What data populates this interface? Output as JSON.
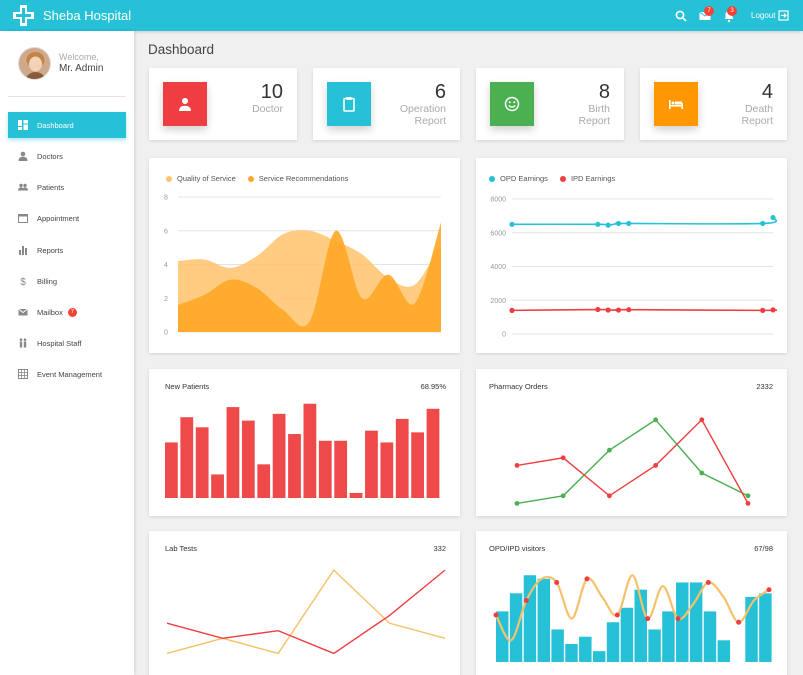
{
  "header": {
    "brand": "Sheba Hospital",
    "mail_badge": "7",
    "notif_badge": "3",
    "logout_label": "Logout",
    "accent": "#26c1d6"
  },
  "user": {
    "welcome": "Welcome,",
    "name": "Mr. Admin"
  },
  "sidebar": {
    "items": [
      {
        "label": "Dashboard",
        "icon": "dashboard-icon",
        "active": true
      },
      {
        "label": "Doctors",
        "icon": "person-icon"
      },
      {
        "label": "Patients",
        "icon": "people-icon"
      },
      {
        "label": "Appointment",
        "icon": "calendar-icon"
      },
      {
        "label": "Reports",
        "icon": "bar-chart-icon"
      },
      {
        "label": "Billing",
        "icon": "dollar-icon"
      },
      {
        "label": "Mailbox",
        "icon": "mail-icon",
        "badge": "7"
      },
      {
        "label": "Hospital Staff",
        "icon": "staff-icon"
      },
      {
        "label": "Event Management",
        "icon": "grid-icon"
      }
    ]
  },
  "page_title": "Dashboard",
  "stats": [
    {
      "value": "10",
      "label_lines": [
        "Doctor"
      ],
      "color": "#ef3e42",
      "icon": "person-icon"
    },
    {
      "value": "6",
      "label_lines": [
        "Operation",
        "Report"
      ],
      "color": "#26c1d6",
      "icon": "clipboard-icon"
    },
    {
      "value": "8",
      "label_lines": [
        "Birth",
        "Report"
      ],
      "color": "#4caf50",
      "icon": "smiley-icon"
    },
    {
      "value": "4",
      "label_lines": [
        "Death",
        "Report"
      ],
      "color": "#ff9800",
      "icon": "bed-icon"
    }
  ],
  "chart_data": [
    {
      "type": "area",
      "title": "",
      "series": [
        {
          "name": "Quality of Service",
          "color": "#ffc36b",
          "x": [
            0,
            1,
            2,
            3,
            4,
            5,
            6,
            7,
            8,
            9,
            10
          ],
          "values": [
            4.2,
            4.3,
            3.8,
            4.5,
            5.8,
            6.0,
            5.4,
            4.6,
            3.2,
            2.8,
            5.3
          ]
        },
        {
          "name": "Service Recommendations",
          "color": "#ffa726",
          "x": [
            0,
            1,
            2,
            3,
            4,
            5,
            6,
            7,
            8,
            9,
            10
          ],
          "values": [
            1.6,
            2.2,
            3.1,
            2.6,
            1.3,
            0.6,
            6.0,
            2.0,
            3.4,
            1.7,
            6.5
          ]
        }
      ],
      "ylim": [
        0,
        8
      ],
      "yticks": [
        0,
        2,
        4,
        6,
        8
      ]
    },
    {
      "type": "line",
      "title": "",
      "series": [
        {
          "name": "OPD Earnings",
          "color": "#26c1d6",
          "x": [
            0,
            2.5,
            2.8,
            3.1,
            3.4,
            7.3,
            7.6
          ],
          "values": [
            6500,
            6500,
            6450,
            6550,
            6550,
            6550,
            6900
          ]
        },
        {
          "name": "IPD Earnings",
          "color": "#ef3e42",
          "x": [
            0,
            2.5,
            2.8,
            3.1,
            3.4,
            7.3,
            7.6
          ],
          "values": [
            1400,
            1450,
            1420,
            1420,
            1440,
            1400,
            1430
          ]
        }
      ],
      "ylim": [
        0,
        8000
      ],
      "yticks": [
        0,
        2000,
        4000,
        6000,
        8000
      ]
    },
    {
      "type": "bar",
      "title": "New Patients",
      "summary": "68.95%",
      "color": "#ef4a4a",
      "values": [
        33,
        48,
        42,
        14,
        54,
        46,
        20,
        50,
        38,
        56,
        34,
        34,
        3,
        40,
        33,
        47,
        39,
        53
      ],
      "ylim": [
        0,
        60
      ]
    },
    {
      "type": "line",
      "title": "Pharmacy Orders",
      "summary": "2332",
      "series": [
        {
          "name": "",
          "color": "#4caf50",
          "values": [
            1,
            2,
            8,
            12,
            5,
            2
          ]
        },
        {
          "name": "",
          "color": "#ef3e42",
          "values": [
            6,
            7,
            2,
            6,
            12,
            1
          ]
        }
      ],
      "ylim": [
        0,
        15
      ]
    },
    {
      "type": "line",
      "title": "Lab Tests",
      "summary": "332",
      "series": [
        {
          "name": "",
          "color": "#f5c26b",
          "values": [
            1,
            3,
            1,
            12,
            5,
            3
          ]
        },
        {
          "name": "",
          "color": "#ef3e42",
          "values": [
            5,
            3,
            4,
            1,
            6,
            12
          ]
        }
      ],
      "ylim": [
        0,
        14
      ]
    },
    {
      "type": "bar",
      "title": "OPD/IPD visitors",
      "summary": "67/98",
      "color": "#26c1d6",
      "values": [
        14,
        19,
        24,
        23,
        9,
        5,
        7,
        3,
        11,
        15,
        20,
        9,
        14,
        22,
        22,
        14,
        6,
        0,
        18,
        19
      ],
      "line_series": {
        "color": "#f5c26b",
        "point_color": "#ef3e42",
        "values": [
          13,
          6,
          17,
          23,
          22,
          12,
          23,
          18,
          13,
          24,
          12,
          21,
          12,
          16,
          22,
          18,
          11,
          17,
          20
        ]
      },
      "ylim": [
        0,
        26
      ]
    }
  ]
}
